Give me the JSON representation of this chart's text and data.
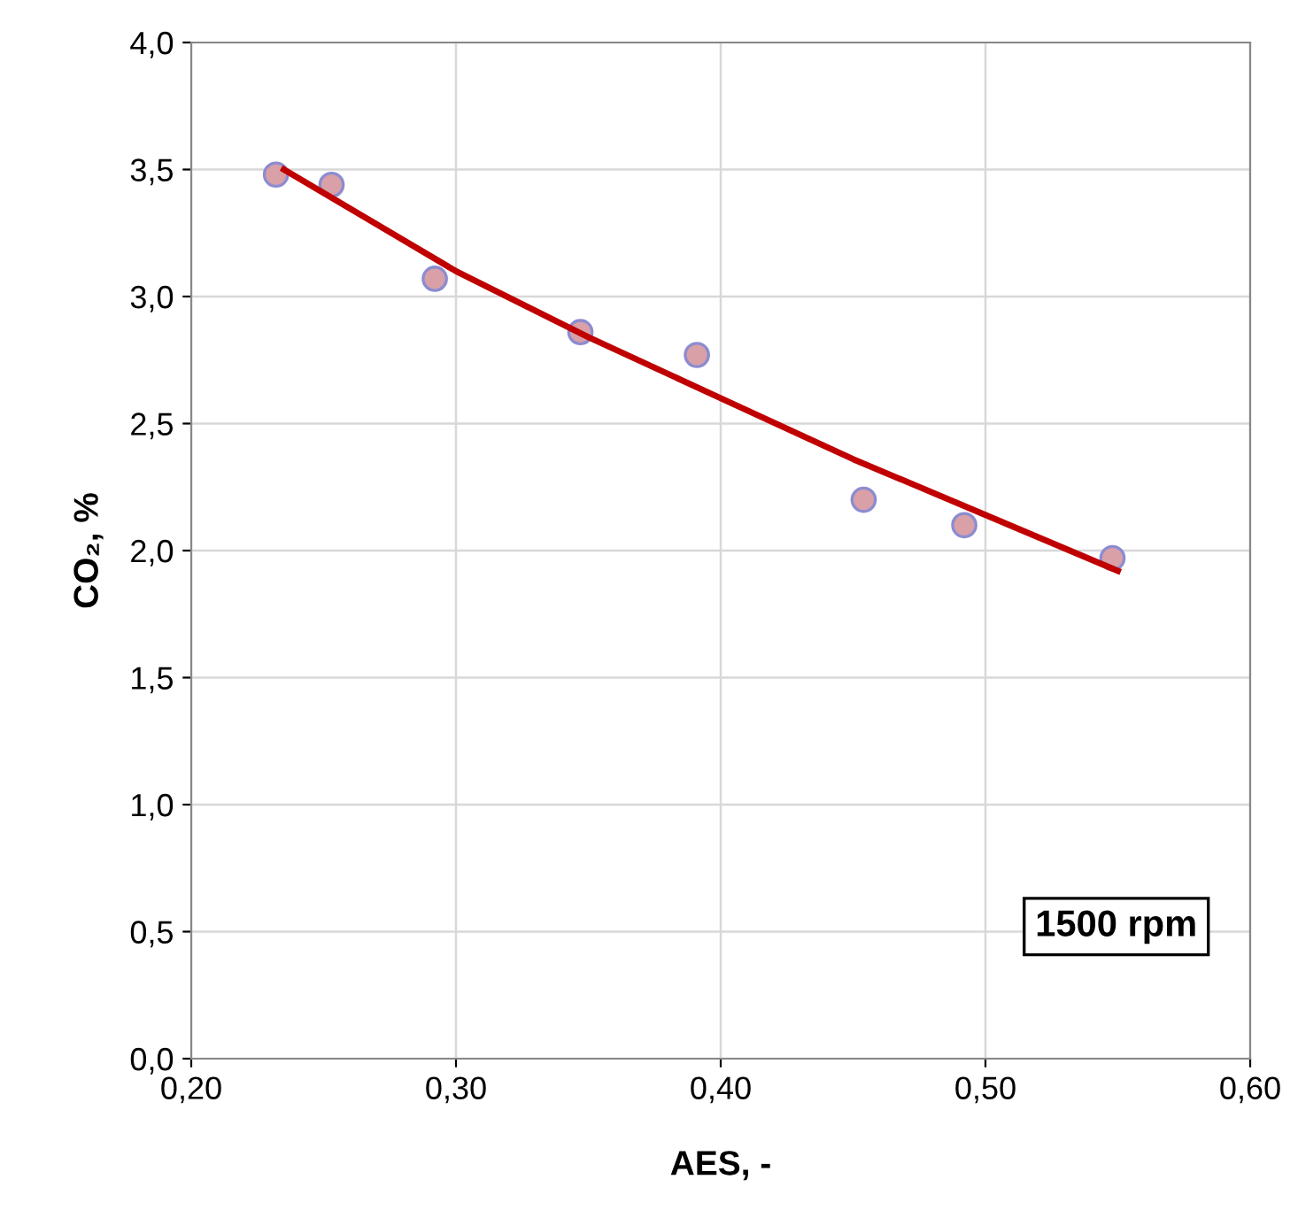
{
  "chart_data": {
    "type": "scatter",
    "xlabel": "AES, -",
    "ylabel": "CO₂, %",
    "xlim": [
      0.2,
      0.6
    ],
    "ylim": [
      0,
      4
    ],
    "xticks": [
      {
        "value": 0.2,
        "label": "0,20"
      },
      {
        "value": 0.3,
        "label": "0,30"
      },
      {
        "value": 0.4,
        "label": "0,40"
      },
      {
        "value": 0.5,
        "label": "0,50"
      },
      {
        "value": 0.6,
        "label": "0,60"
      }
    ],
    "yticks": [
      {
        "value": 0,
        "label": "0,0"
      },
      {
        "value": 0.5,
        "label": "0,5"
      },
      {
        "value": 1,
        "label": "1,0"
      },
      {
        "value": 1.5,
        "label": "1,5"
      },
      {
        "value": 2,
        "label": "2,0"
      },
      {
        "value": 2.5,
        "label": "2,5"
      },
      {
        "value": 3,
        "label": "3,0"
      },
      {
        "value": 3.5,
        "label": "3,5"
      },
      {
        "value": 4,
        "label": "4,0"
      }
    ],
    "grid": true,
    "series": [
      {
        "marker": "circle",
        "color": "#d9a0a8",
        "x": [
          0.232,
          0.253,
          0.292,
          0.347,
          0.391,
          0.454,
          0.492,
          0.548
        ],
        "values": [
          3.48,
          3.44,
          3.07,
          2.86,
          2.77,
          2.2,
          2.1,
          1.97
        ]
      },
      {
        "type": "line",
        "color": "#c00000",
        "line_style": "solid",
        "x": [
          0.235,
          0.3,
          0.35,
          0.4,
          0.45,
          0.5,
          0.55
        ],
        "values": [
          3.5,
          3.1,
          2.84,
          2.6,
          2.36,
          2.14,
          1.92
        ]
      }
    ],
    "annotations": [
      "1500 rpm"
    ]
  }
}
